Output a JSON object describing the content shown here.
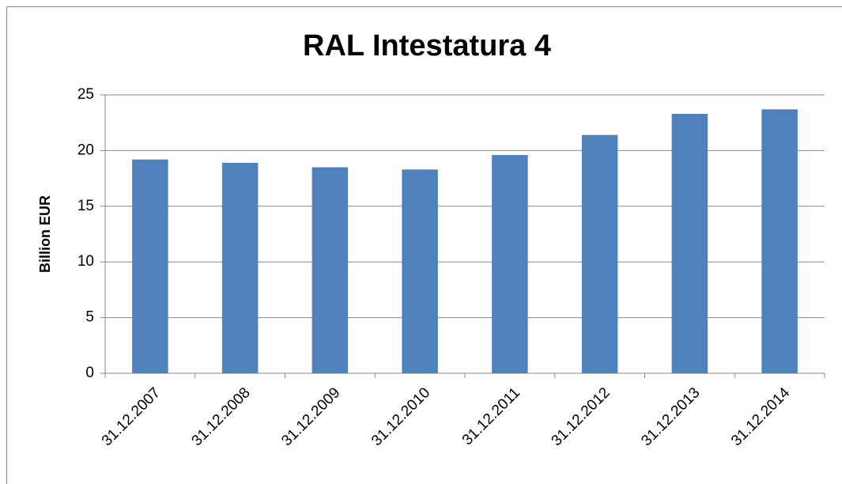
{
  "chart_data": {
    "type": "bar",
    "title": "RAL Intestatura 4",
    "y_label": "Billion EUR",
    "categories": [
      "31.12.2007",
      "31.12.2008",
      "31.12.2009",
      "31.12.2010",
      "31.12.2011",
      "31.12.2012",
      "31.12.2013",
      "31.12.2014"
    ],
    "values": [
      19.2,
      18.9,
      18.5,
      18.3,
      19.6,
      21.4,
      23.3,
      23.7
    ],
    "color": "#4f81bd",
    "ylim": [
      0,
      25
    ],
    "yticks": [
      0,
      5,
      10,
      15,
      20,
      25
    ],
    "grid": true
  }
}
